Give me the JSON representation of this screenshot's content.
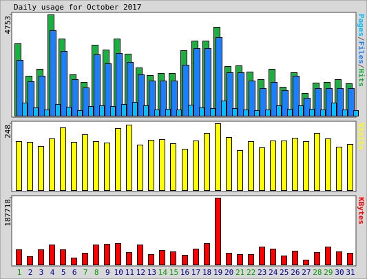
{
  "chart_data": [
    {
      "type": "bar",
      "title": "Daily usage for October 2017",
      "ylim": [
        0,
        4753
      ],
      "yticks": [
        4753
      ],
      "legend_separator": "/",
      "series": [
        {
          "name": "Pages",
          "color": "#00c0ff",
          "values": [
            623,
            394,
            295,
            558,
            426,
            262,
            459,
            492,
            459,
            558,
            656,
            492,
            295,
            328,
            295,
            525,
            394,
            361,
            722,
            361,
            295,
            262,
            295,
            492,
            328,
            492,
            328,
            295,
            623,
            295,
            262
          ]
        },
        {
          "name": "Files",
          "color": "#1a80ff",
          "values": [
            2624,
            1607,
            1870,
            4002,
            3050,
            1706,
            1312,
            2886,
            2460,
            2952,
            2526,
            1935,
            1640,
            1640,
            1640,
            2394,
            3182,
            3182,
            3674,
            2034,
            2034,
            1640,
            1279,
            1574,
            1181,
            1870,
            853,
            1279,
            1279,
            1279,
            1279
          ]
        },
        {
          "name": "Hits",
          "color": "#1cb040",
          "values": [
            3411,
            1870,
            2198,
            4753,
            3608,
            1935,
            1574,
            3346,
            3116,
            3608,
            2919,
            2263,
            1902,
            2001,
            2001,
            3083,
            3510,
            3510,
            4166,
            2329,
            2362,
            2066,
            1706,
            2198,
            1345,
            2034,
            1082,
            1542,
            1574,
            1706,
            1509
          ]
        }
      ]
    },
    {
      "type": "bar",
      "ylim": [
        0,
        248
      ],
      "yticks": [
        248
      ],
      "series": [
        {
          "name": "Visits",
          "color": "#ffff00",
          "values": [
            182,
            180,
            164,
            193,
            232,
            180,
            206,
            182,
            177,
            230,
            243,
            169,
            187,
            190,
            174,
            153,
            185,
            211,
            248,
            198,
            148,
            182,
            158,
            185,
            185,
            195,
            182,
            211,
            193,
            161,
            172
          ]
        }
      ]
    },
    {
      "type": "bar",
      "ylim": [
        0,
        187718
      ],
      "yticks": [
        187718
      ],
      "categories": [
        "1",
        "2",
        "3",
        "4",
        "5",
        "6",
        "7",
        "8",
        "9",
        "10",
        "11",
        "12",
        "13",
        "14",
        "15",
        "16",
        "17",
        "18",
        "19",
        "20",
        "21",
        "22",
        "23",
        "24",
        "25",
        "26",
        "27",
        "28",
        "29",
        "30",
        "31"
      ],
      "category_colors": [
        "#00a000",
        "#0000a0",
        "#0000a0",
        "#0000a0",
        "#0000a0",
        "#0000a0",
        "#00a000",
        "#00a000",
        "#0000a0",
        "#0000a0",
        "#0000a0",
        "#0000a0",
        "#0000a0",
        "#00a000",
        "#00a000",
        "#0000a0",
        "#0000a0",
        "#0000a0",
        "#0000a0",
        "#0000a0",
        "#00a000",
        "#00a000",
        "#0000a0",
        "#0000a0",
        "#0000a0",
        "#0000a0",
        "#0000a0",
        "#00a000",
        "#00a000",
        "#0000a0",
        "#0000a0"
      ],
      "series": [
        {
          "name": "KBytes",
          "color": "#ff0000",
          "values": [
            41937,
            23964,
            41937,
            55916,
            41937,
            19970,
            31952,
            55916,
            57913,
            59910,
            33949,
            55916,
            29955,
            39940,
            35946,
            27958,
            43934,
            59910,
            187718,
            31952,
            29955,
            29955,
            49925,
            43934,
            25961,
            37943,
            13979,
            33949,
            49925,
            35946,
            31952
          ]
        }
      ]
    }
  ]
}
